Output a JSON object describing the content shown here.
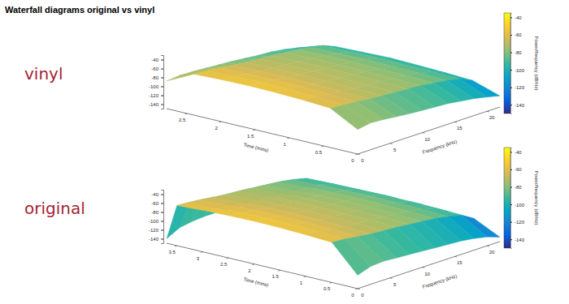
{
  "title": "Waterfall diagrams original vs vinyl",
  "chart_data": [
    {
      "type": "surface",
      "label": "vinyl",
      "x_label": "Time (mins)",
      "y_label": "Frequency (kHz)",
      "x": [
        0,
        0.4,
        0.8,
        1.2,
        1.6,
        2.0,
        2.4,
        2.8
      ],
      "y": [
        0,
        2,
        4,
        6,
        8,
        10,
        12,
        14,
        16,
        18,
        20,
        22
      ],
      "values": [
        [
          -95,
          -90,
          -92,
          -95,
          -98,
          -100,
          -102,
          -104,
          -108,
          -112,
          -118,
          -125
        ],
        [
          -62,
          -64,
          -66,
          -70,
          -72,
          -74,
          -76,
          -78,
          -82,
          -86,
          -92,
          -105
        ],
        [
          -58,
          -60,
          -64,
          -67,
          -70,
          -72,
          -74,
          -77,
          -80,
          -84,
          -90,
          -102
        ],
        [
          -56,
          -58,
          -62,
          -66,
          -69,
          -71,
          -73,
          -76,
          -79,
          -83,
          -89,
          -100
        ],
        [
          -55,
          -57,
          -61,
          -65,
          -68,
          -70,
          -72,
          -75,
          -78,
          -82,
          -88,
          -98
        ],
        [
          -56,
          -58,
          -62,
          -66,
          -68,
          -70,
          -73,
          -75,
          -78,
          -83,
          -89,
          -100
        ],
        [
          -58,
          -60,
          -63,
          -67,
          -70,
          -72,
          -74,
          -77,
          -80,
          -84,
          -90,
          -102
        ],
        [
          -88,
          -85,
          -86,
          -88,
          -90,
          -92,
          -95,
          -98,
          -100,
          -104,
          -110,
          -118
        ]
      ],
      "xlim": [
        0,
        2.8
      ],
      "xticks": [
        0,
        0.5,
        1,
        1.5,
        2,
        2.5
      ],
      "ylim": [
        0,
        22
      ],
      "yticks": [
        0,
        5,
        10,
        15,
        20
      ],
      "zlim": [
        -150,
        -30
      ],
      "zticks": [
        -140,
        -120,
        -100,
        -80,
        -60,
        -40
      ],
      "colorbar": {
        "range": [
          -150,
          -35
        ],
        "ticks": [
          -140,
          -120,
          -100,
          -80,
          -60,
          -40
        ],
        "label": "Power/frequency (dB/Hz)"
      }
    },
    {
      "type": "surface",
      "label": "original",
      "x_label": "Time (mins)",
      "y_label": "Frequency (kHz)",
      "x": [
        0,
        0.5,
        1,
        1.5,
        2,
        2.5,
        3,
        3.5,
        3.7
      ],
      "y": [
        0,
        2,
        4,
        6,
        8,
        10,
        12,
        14,
        16,
        18,
        20,
        22
      ],
      "values": [
        [
          -120,
          -110,
          -108,
          -110,
          -112,
          -114,
          -116,
          -118,
          -120,
          -124,
          -130,
          -140
        ],
        [
          -60,
          -62,
          -66,
          -70,
          -72,
          -74,
          -77,
          -80,
          -83,
          -88,
          -95,
          -112
        ],
        [
          -57,
          -59,
          -63,
          -67,
          -70,
          -72,
          -75,
          -78,
          -81,
          -86,
          -93,
          -110
        ],
        [
          -55,
          -58,
          -62,
          -66,
          -69,
          -71,
          -74,
          -77,
          -80,
          -85,
          -92,
          -108
        ],
        [
          -54,
          -57,
          -61,
          -65,
          -68,
          -70,
          -73,
          -76,
          -79,
          -84,
          -91,
          -108
        ],
        [
          -55,
          -58,
          -62,
          -66,
          -69,
          -71,
          -74,
          -77,
          -80,
          -85,
          -92,
          -110
        ],
        [
          -57,
          -60,
          -63,
          -67,
          -70,
          -72,
          -75,
          -78,
          -81,
          -86,
          -93,
          -112
        ],
        [
          -60,
          -62,
          -65,
          -69,
          -72,
          -74,
          -77,
          -80,
          -83,
          -88,
          -95,
          -115
        ],
        [
          -140,
          -125,
          -120,
          -118,
          -118,
          -120,
          -122,
          -124,
          -126,
          -130,
          -135,
          -140
        ]
      ],
      "xlim": [
        0,
        3.7
      ],
      "xticks": [
        0,
        0.5,
        1,
        1.5,
        2,
        2.5,
        3,
        3.5
      ],
      "ylim": [
        0,
        22
      ],
      "yticks": [
        0,
        5,
        10,
        15,
        20
      ],
      "zlim": [
        -150,
        -30
      ],
      "zticks": [
        -140,
        -120,
        -100,
        -80,
        -60,
        -40
      ],
      "colorbar": {
        "range": [
          -150,
          -35
        ],
        "ticks": [
          -140,
          -120,
          -100,
          -80,
          -60,
          -40
        ],
        "label": "Power/frequency (dB/Hz)"
      }
    }
  ]
}
